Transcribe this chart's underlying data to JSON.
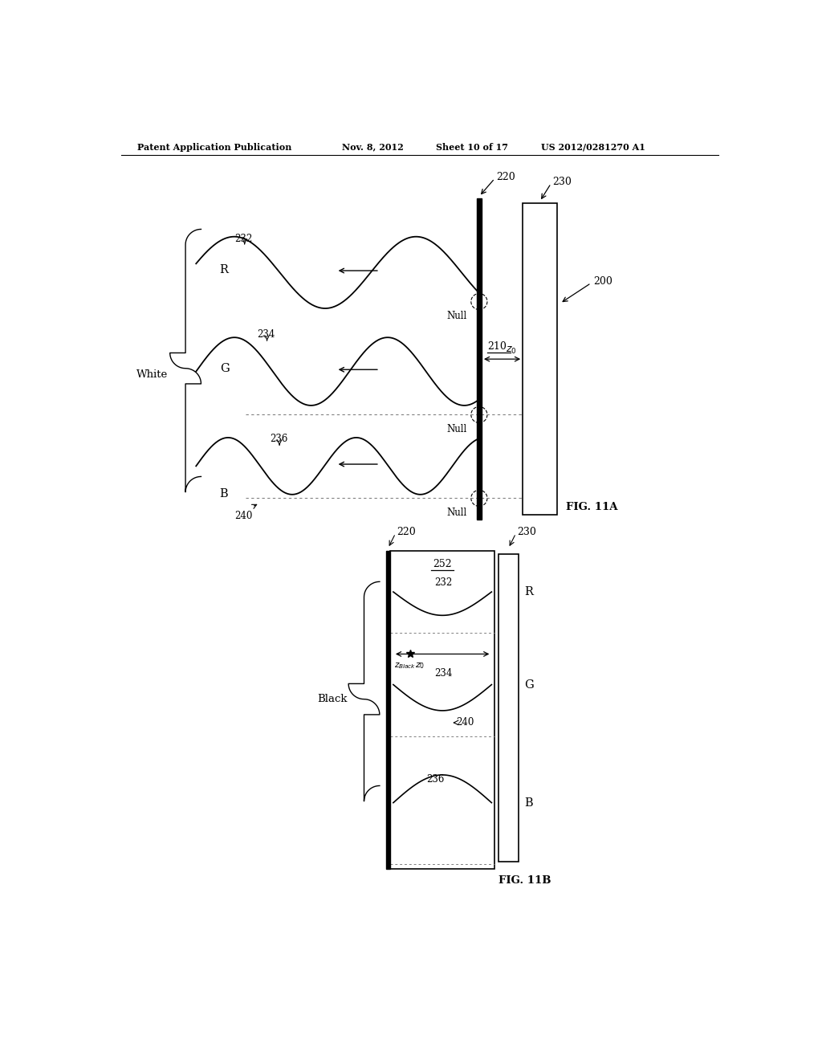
{
  "bg_color": "#ffffff",
  "header_text": "Patent Application Publication",
  "header_date": "Nov. 8, 2012",
  "header_sheet": "Sheet 10 of 17",
  "header_patent": "US 2012/0281270 A1",
  "fig11a_label": "FIG. 11A",
  "fig11b_label": "FIG. 11B"
}
